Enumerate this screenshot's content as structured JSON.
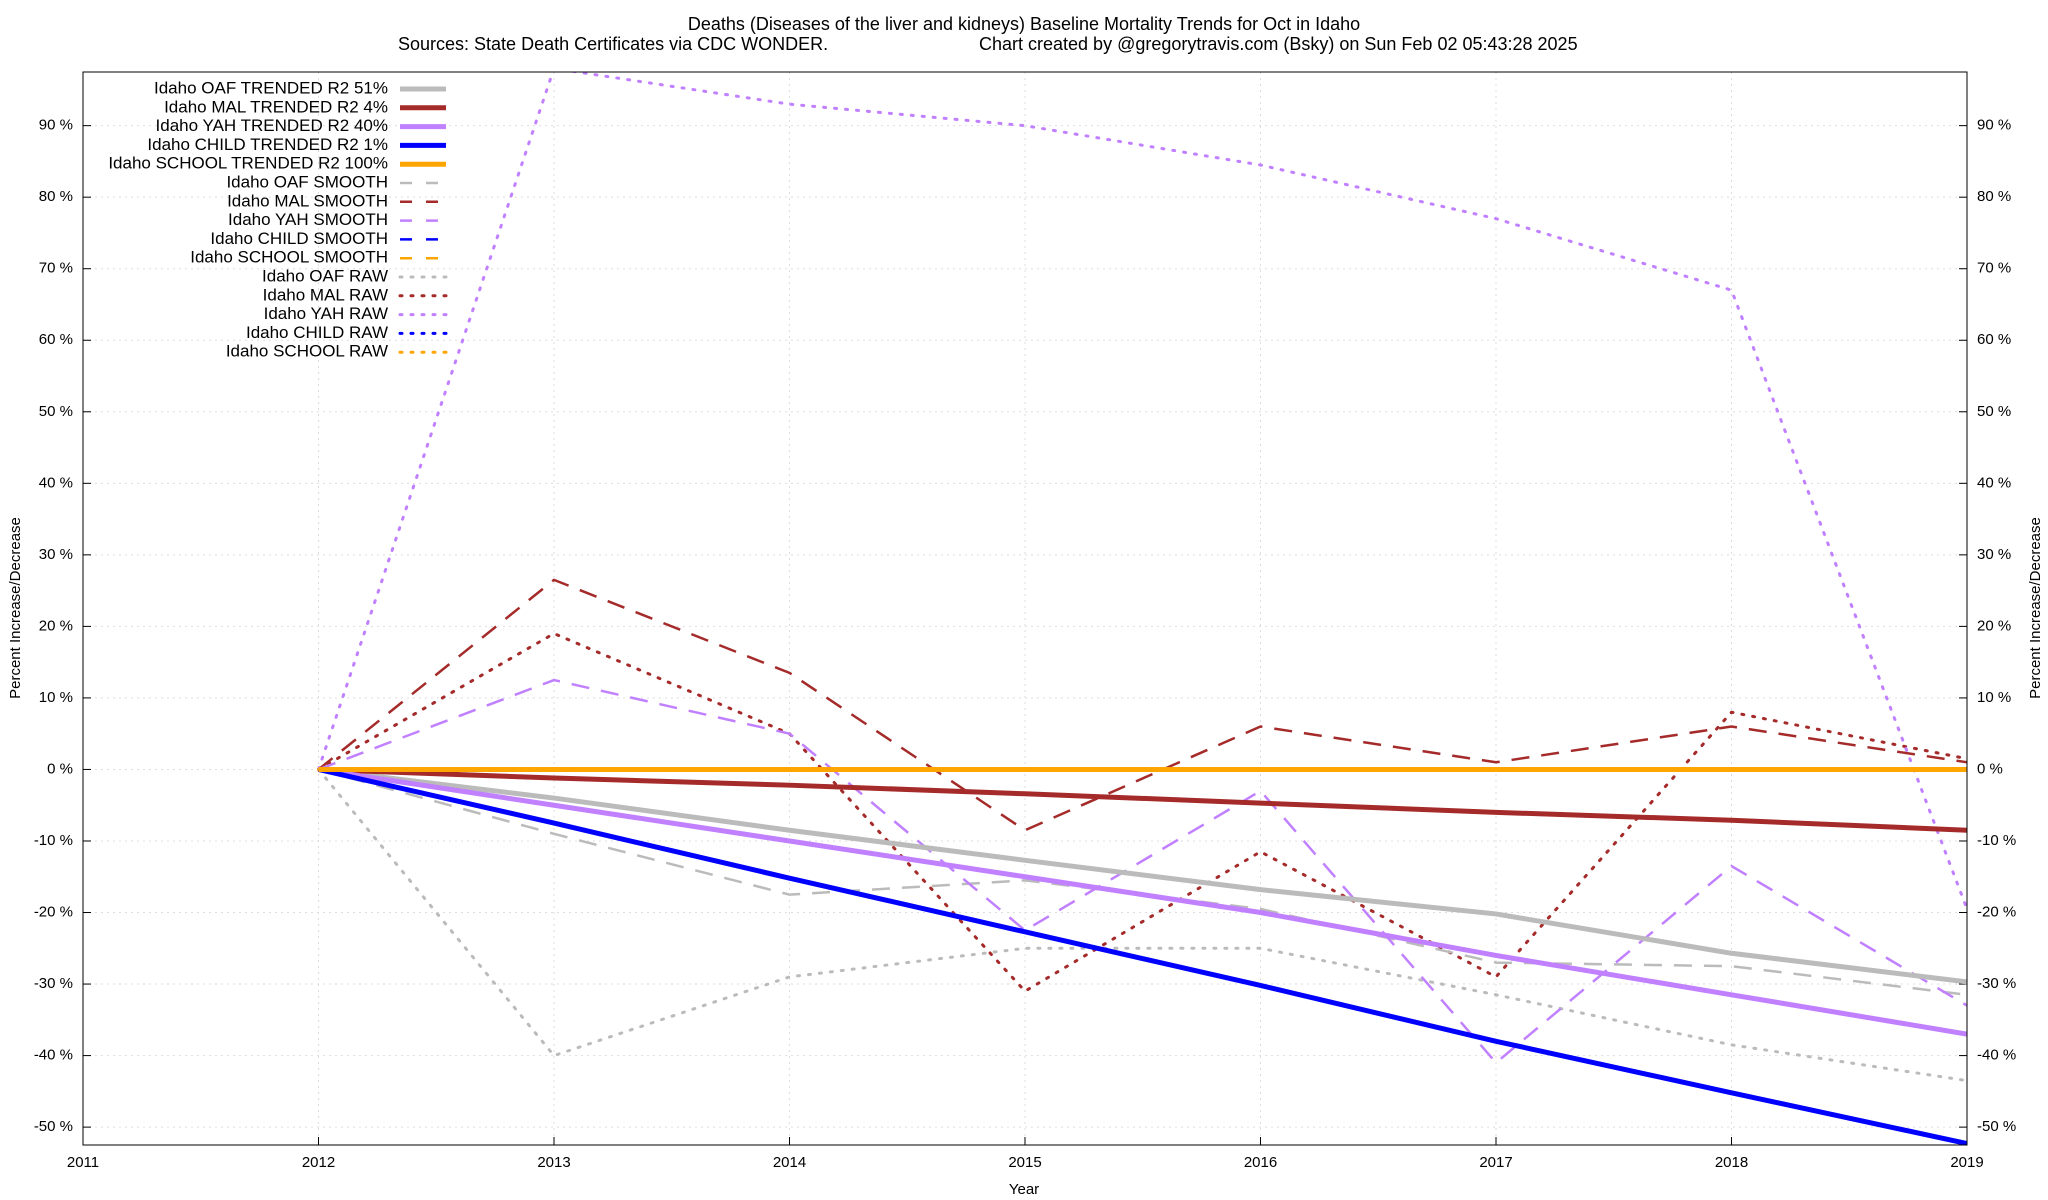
{
  "chart_data": {
    "type": "line",
    "title": "Deaths (Diseases of the liver and kidneys)  Baseline Mortality Trends for Oct in Idaho",
    "subtitle": "Sources: State Death Certificates via CDC WONDER.",
    "credit": "Chart created by @gregorytravis.com (Bsky) on Sun Feb 02 05:43:28 2025",
    "xlabel": "Year",
    "ylabel": "Percent Increase/Decrease",
    "x": [
      2012,
      2013,
      2014,
      2015,
      2016,
      2017,
      2018,
      2019
    ],
    "xlim": [
      2011,
      2019
    ],
    "xticks": [
      2011,
      2012,
      2013,
      2014,
      2015,
      2016,
      2017,
      2018,
      2019
    ],
    "ylim": [
      -52.5,
      97.5
    ],
    "yticks": [
      {
        "value": -50,
        "label": "-50 %"
      },
      {
        "value": -40,
        "label": "-40 %"
      },
      {
        "value": -30,
        "label": "-30 %"
      },
      {
        "value": -20,
        "label": "-20 %"
      },
      {
        "value": -10,
        "label": "-10 %"
      },
      {
        "value": 0,
        "label": "0 %"
      },
      {
        "value": 10,
        "label": "10 %"
      },
      {
        "value": 20,
        "label": "20 %"
      },
      {
        "value": 30,
        "label": "30 %"
      },
      {
        "value": 40,
        "label": "40 %"
      },
      {
        "value": 50,
        "label": "50 %"
      },
      {
        "value": 60,
        "label": "60 %"
      },
      {
        "value": 70,
        "label": "70 %"
      },
      {
        "value": 80,
        "label": "80 %"
      },
      {
        "value": 90,
        "label": "90 %"
      }
    ],
    "grid": true,
    "legend": "top-left",
    "series": [
      {
        "name": "Idaho OAF TRENDED R2  51%",
        "color": "#bbbbbb",
        "style": "solid",
        "values": [
          0,
          -4,
          -8.5,
          -12.7,
          -16.8,
          -20.2,
          -25.7,
          -29.7
        ]
      },
      {
        "name": "Idaho MAL TRENDED R2   4%",
        "color": "#a52a2a",
        "style": "solid",
        "values": [
          0,
          -1.2,
          -2.2,
          -3.4,
          -4.7,
          -6,
          -7.1,
          -8.5
        ]
      },
      {
        "name": "Idaho YAH TRENDED R2  40%",
        "color": "#c080ff",
        "style": "solid",
        "values": [
          0,
          -5,
          -10,
          -15,
          -20,
          -26,
          -31.5,
          -37
        ]
      },
      {
        "name": "Idaho CHILD TRENDED R2   1%",
        "color": "#0000ff",
        "style": "solid",
        "values": [
          0,
          -7.5,
          -15.2,
          -22.7,
          -30.2,
          -38,
          -45.2,
          -52.3
        ]
      },
      {
        "name": "Idaho SCHOOL TRENDED R2 100%",
        "color": "#ffa500",
        "style": "solid",
        "values": [
          0,
          0,
          0,
          0,
          0,
          0,
          0,
          0
        ]
      },
      {
        "name": "Idaho OAF SMOOTH",
        "color": "#bbbbbb",
        "style": "dashed",
        "values": [
          0,
          -9,
          -17.5,
          -15.5,
          -19.5,
          -27,
          -27.5,
          -31.5
        ]
      },
      {
        "name": "Idaho MAL SMOOTH",
        "color": "#a52a2a",
        "style": "dashed",
        "values": [
          0,
          26.5,
          13.5,
          -8.5,
          6,
          1,
          6,
          1
        ]
      },
      {
        "name": "Idaho YAH SMOOTH",
        "color": "#c080ff",
        "style": "dashed",
        "values": [
          0,
          12.5,
          5,
          -22.5,
          -3,
          -41,
          -13.5,
          -33
        ]
      },
      {
        "name": "Idaho CHILD SMOOTH",
        "color": "#0000ff",
        "style": "dashed",
        "values": [
          null,
          null,
          null,
          null,
          null,
          null,
          null,
          null
        ]
      },
      {
        "name": "Idaho SCHOOL SMOOTH",
        "color": "#ffa500",
        "style": "dashed",
        "values": [
          null,
          null,
          null,
          null,
          null,
          null,
          null,
          null
        ]
      },
      {
        "name": "Idaho OAF RAW",
        "color": "#bbbbbb",
        "style": "dotted",
        "values": [
          0,
          -40,
          -29,
          -25,
          -25,
          -31.5,
          -38.5,
          -43.5
        ]
      },
      {
        "name": "Idaho MAL RAW",
        "color": "#a52a2a",
        "style": "dotted",
        "values": [
          0,
          19,
          5,
          -31,
          -11.5,
          -29,
          8,
          1.5
        ]
      },
      {
        "name": "Idaho YAH RAW",
        "color": "#c080ff",
        "style": "dotted",
        "values": [
          0,
          98,
          93,
          90,
          84.5,
          77,
          67,
          -19.5
        ]
      },
      {
        "name": "Idaho CHILD RAW",
        "color": "#0000ff",
        "style": "dotted",
        "values": [
          null,
          null,
          null,
          null,
          null,
          null,
          null,
          null
        ]
      },
      {
        "name": "Idaho SCHOOL RAW",
        "color": "#ffa500",
        "style": "dotted",
        "values": [
          0,
          0,
          0,
          0,
          0,
          0,
          0,
          0
        ]
      }
    ]
  }
}
